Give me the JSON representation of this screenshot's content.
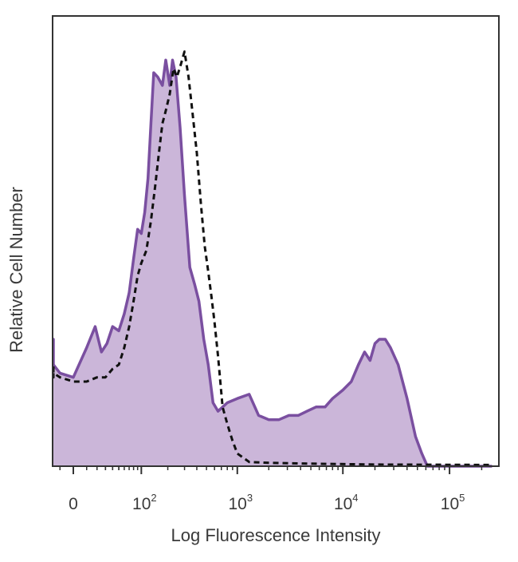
{
  "chart_data": {
    "type": "area",
    "title": "",
    "xlabel": "Log Fluorescence Intensity",
    "ylabel": "Relative Cell Number",
    "x_scale": "biexponential",
    "xlim": [
      -60,
      250000
    ],
    "ylim": [
      0,
      100
    ],
    "grid": false,
    "legend": "none",
    "x_ticks": [
      {
        "value": 0,
        "base": "0",
        "exp": ""
      },
      {
        "value": 100,
        "base": "10",
        "exp": "2"
      },
      {
        "value": 1000,
        "base": "10",
        "exp": "3"
      },
      {
        "value": 10000,
        "base": "10",
        "exp": "4"
      },
      {
        "value": 100000,
        "base": "10",
        "exp": "5"
      }
    ],
    "series": [
      {
        "style": "filled",
        "color": "#7a4fa0",
        "fill": "#cbb6d9",
        "points": [
          [
            -60,
            29
          ],
          [
            -55,
            30
          ],
          [
            -45,
            26
          ],
          [
            -30,
            30
          ],
          [
            -20,
            24
          ],
          [
            -10,
            22
          ],
          [
            0,
            21
          ],
          [
            10,
            28
          ],
          [
            18,
            33
          ],
          [
            25,
            27
          ],
          [
            32,
            29
          ],
          [
            40,
            33
          ],
          [
            50,
            32
          ],
          [
            60,
            36
          ],
          [
            70,
            41
          ],
          [
            80,
            49
          ],
          [
            90,
            56
          ],
          [
            100,
            55
          ],
          [
            110,
            60
          ],
          [
            120,
            68
          ],
          [
            130,
            81
          ],
          [
            140,
            93
          ],
          [
            155,
            92
          ],
          [
            175,
            90
          ],
          [
            190,
            96
          ],
          [
            210,
            90
          ],
          [
            225,
            96
          ],
          [
            245,
            92
          ],
          [
            270,
            80
          ],
          [
            300,
            64
          ],
          [
            340,
            47
          ],
          [
            380,
            43
          ],
          [
            420,
            39
          ],
          [
            470,
            30
          ],
          [
            520,
            24
          ],
          [
            580,
            15
          ],
          [
            650,
            13
          ],
          [
            800,
            15
          ],
          [
            1000,
            16
          ],
          [
            1300,
            17
          ],
          [
            1600,
            12
          ],
          [
            2000,
            11
          ],
          [
            2500,
            11
          ],
          [
            3100,
            12
          ],
          [
            3800,
            12
          ],
          [
            4600,
            13
          ],
          [
            5600,
            14
          ],
          [
            6800,
            14
          ],
          [
            8000,
            16
          ],
          [
            10000,
            18
          ],
          [
            12000,
            20
          ],
          [
            14000,
            24
          ],
          [
            16000,
            27
          ],
          [
            18000,
            25
          ],
          [
            20000,
            29
          ],
          [
            22000,
            30
          ],
          [
            25000,
            30
          ],
          [
            28000,
            28
          ],
          [
            33000,
            24
          ],
          [
            40000,
            16
          ],
          [
            48000,
            7
          ],
          [
            55000,
            3
          ],
          [
            62000,
            0
          ],
          [
            250000,
            0
          ]
        ]
      },
      {
        "style": "dashed",
        "color": "#111111",
        "points": [
          [
            -60,
            22
          ],
          [
            -50,
            21
          ],
          [
            -40,
            24
          ],
          [
            -30,
            22
          ],
          [
            -20,
            22
          ],
          [
            -10,
            21
          ],
          [
            0,
            20
          ],
          [
            10,
            20
          ],
          [
            20,
            21
          ],
          [
            30,
            21
          ],
          [
            40,
            23
          ],
          [
            50,
            24
          ],
          [
            60,
            28
          ],
          [
            70,
            33
          ],
          [
            80,
            39
          ],
          [
            90,
            45
          ],
          [
            100,
            48
          ],
          [
            115,
            51
          ],
          [
            130,
            58
          ],
          [
            145,
            66
          ],
          [
            160,
            74
          ],
          [
            175,
            81
          ],
          [
            190,
            84
          ],
          [
            210,
            88
          ],
          [
            230,
            94
          ],
          [
            250,
            92
          ],
          [
            275,
            95
          ],
          [
            300,
            98
          ],
          [
            330,
            92
          ],
          [
            360,
            84
          ],
          [
            400,
            74
          ],
          [
            440,
            62
          ],
          [
            480,
            52
          ],
          [
            520,
            46
          ],
          [
            560,
            40
          ],
          [
            600,
            34
          ],
          [
            650,
            26
          ],
          [
            720,
            14
          ],
          [
            800,
            10
          ],
          [
            900,
            6
          ],
          [
            1000,
            3
          ],
          [
            1300,
            1
          ],
          [
            2000,
            0.8
          ],
          [
            5000,
            0.6
          ],
          [
            20000,
            0.4
          ],
          [
            250000,
            0.3
          ]
        ]
      }
    ]
  }
}
